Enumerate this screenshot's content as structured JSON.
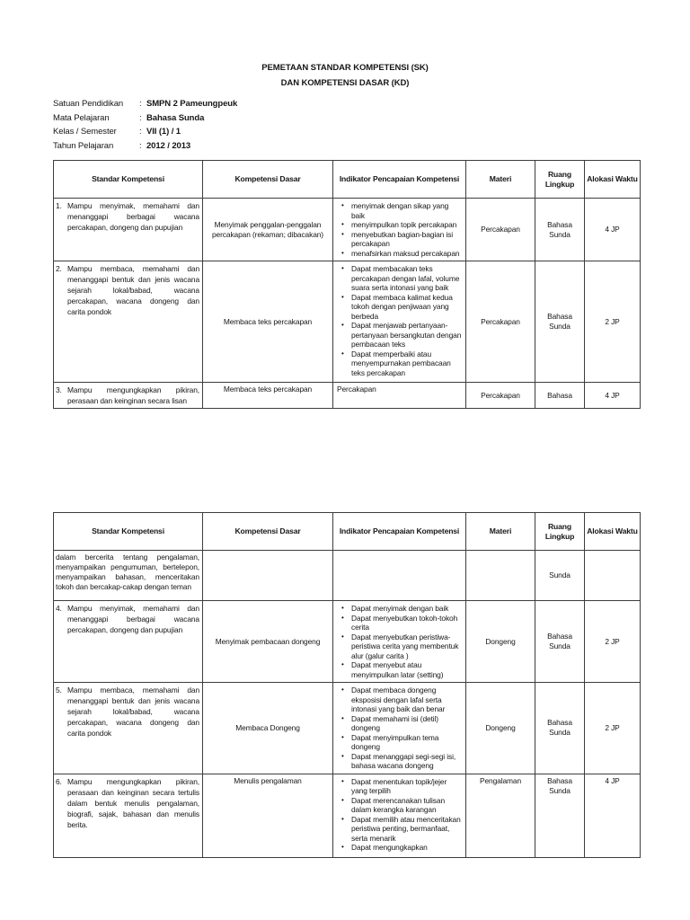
{
  "colon": ":",
  "title": {
    "line1": "PEMETAAN STANDAR KOMPETENSI (SK)",
    "line2": "DAN KOMPETENSI DASAR (KD)"
  },
  "metadata": {
    "rows": [
      {
        "label": "Satuan Pendidikan",
        "value": "SMPN 2 Pameungpeuk"
      },
      {
        "label": "Mata Pelajaran",
        "value": "Bahasa Sunda"
      },
      {
        "label": "Kelas / Semester",
        "value": "VII (1) / 1"
      },
      {
        "label": "Tahun Pelajaran",
        "value": "2012 / 2013"
      }
    ]
  },
  "headers": {
    "sk": "Standar Kompetensi",
    "kd": "Kompetensi Dasar",
    "indikator": "Indikator Pencapaian Kompetensi",
    "materi": "Materi",
    "ruang": "Ruang Lingkup",
    "alokasi": "Alokasi Waktu"
  },
  "table1": {
    "rows": [
      {
        "num": "1.",
        "sk": "Mampu menyimak, memahami dan menanggapi berbagai wacana percakapan, dongeng dan pupujian",
        "kd": "Menyimak penggalan-penggalan percakapan (rekaman; dibacakan)",
        "indicators": [
          "menyimak dengan sikap yang baik",
          "menyimpulkan topik percakapan",
          "menyebutkan bagian-bagian isi percakapan",
          "menafsirkan maksud percakapan"
        ],
        "materi": "Percakapan",
        "ruang": "Bahasa Sunda",
        "alokasi": "4 JP"
      },
      {
        "num": "2.",
        "sk": "Mampu membaca, memahami dan menanggapi bentuk dan jenis wacana sejarah lokal/babad, wacana percakapan, wacana dongeng dan carita pondok",
        "kd": "Membaca teks percakapan",
        "indicators": [
          "Dapat membacakan teks percakapan dengan lafal, volume suara serta intonasi yang baik",
          "Dapat membaca kalimat kedua tokoh dengan penjiwaan yang berbeda",
          "Dapat menjawab pertanyaan-pertanyaan bersangkutan dengan pembacaan teks",
          "Dapat memperbaiki atau menyempurnakan pembacaan teks percakapan"
        ],
        "materi": "Percakapan",
        "ruang": "Bahasa Sunda",
        "alokasi": "2 JP"
      },
      {
        "num": "3.",
        "sk": "Mampu mengungkapkan pikiran, perasaan dan keinginan secara lisan",
        "kd": "Membaca teks percakapan",
        "indikator_text": "Percakapan",
        "materi": "Percakapan",
        "ruang": "Bahasa",
        "alokasi": "4 JP"
      }
    ]
  },
  "table2": {
    "cont": {
      "sk": "dalam bercerita tentang pengalaman, menyampaikan pengumuman, bertelepon, menyampaikan bahasan, menceritakan tokoh dan bercakap-cakap dengan teman",
      "ruang": "Sunda"
    },
    "rows": [
      {
        "num": "4.",
        "sk": "Mampu menyimak, memahami dan menanggapi berbagai wacana percakapan, dongeng dan pupujian",
        "kd": "Menyimak pembacaan dongeng",
        "indicators": [
          "Dapat menyimak dengan baik",
          "Dapat menyebutkan tokoh-tokoh cerita",
          "Dapat menyebutkan peristiwa-peristiwa cerita yang membentuk alur (galur carita )",
          "Dapat menyebut atau menyimpulkan latar (setting)"
        ],
        "materi": "Dongeng",
        "ruang": "Bahasa Sunda",
        "alokasi": "2 JP"
      },
      {
        "num": "5.",
        "sk": "Mampu membaca, memahami dan menanggapi bentuk dan jenis wacana sejarah lokal/babad, wacana percakapan, wacana dongeng dan carita pondok",
        "kd": "Membaca Dongeng",
        "indicators": [
          "Dapat membaca dongeng eksposisi dengan lafal serta intonasi yang baik dan benar",
          "Dapat memahami isi (detil) dongeng",
          "Dapat menyimpulkan tema dongeng",
          "Dapat menanggapi segi-segi isi, bahasa wacana dongeng"
        ],
        "materi": "Dongeng",
        "ruang": "Bahasa Sunda",
        "alokasi": "2 JP"
      },
      {
        "num": "6.",
        "sk": "Mampu mengungkapkan pikiran, perasaan dan keinginan secara tertulis dalam bentuk menulis pengalaman, biografi, sajak, bahasan dan menulis berita.",
        "kd": "Menulis pengalaman",
        "indicators": [
          "Dapat menentukan topik/jejer yang terpilih",
          "Dapat merencanakan tulisan dalam kerangka karangan",
          "Dapat memilih atau menceritakan peristiwa penting, bermanfaat, serta menarik",
          "Dapat mengungkapkan"
        ],
        "materi": "Pengalaman",
        "ruang": "Bahasa Sunda",
        "alokasi": "4 JP"
      }
    ]
  }
}
